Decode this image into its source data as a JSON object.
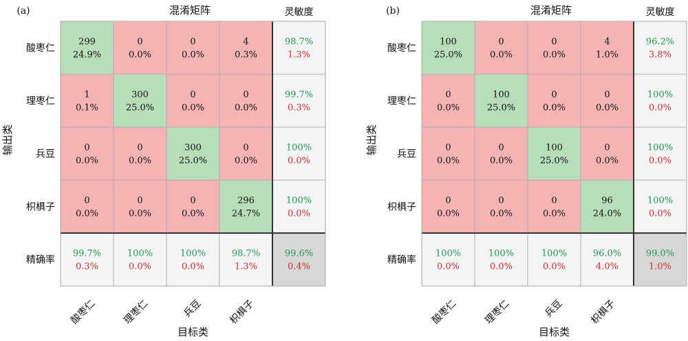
{
  "chart_data": [
    {
      "type": "heatmap",
      "panel": "(a)",
      "title": "混淆矩阵",
      "xlabel": "目标类",
      "ylabel": "输出类",
      "col_header": "灵敏度",
      "row_footer": "精确率",
      "categories": [
        "酸枣仁",
        "理枣仁",
        "兵豆",
        "枳椇子"
      ],
      "counts": [
        [
          299,
          0,
          0,
          4
        ],
        [
          1,
          300,
          0,
          0
        ],
        [
          0,
          0,
          300,
          0
        ],
        [
          0,
          0,
          0,
          296
        ]
      ],
      "percents": [
        [
          "24.9%",
          "0.0%",
          "0.0%",
          "0.3%"
        ],
        [
          "0.1%",
          "25.0%",
          "0.0%",
          "0.0%"
        ],
        [
          "0.0%",
          "0.0%",
          "25.0%",
          "0.0%"
        ],
        [
          "0.0%",
          "0.0%",
          "0.0%",
          "24.7%"
        ]
      ],
      "row_summary": [
        [
          "98.7%",
          "1.3%"
        ],
        [
          "99.7%",
          "0.3%"
        ],
        [
          "100%",
          "0.0%"
        ],
        [
          "100%",
          "0.0%"
        ]
      ],
      "col_summary": [
        [
          "99.7%",
          "0.3%"
        ],
        [
          "100%",
          "0.0%"
        ],
        [
          "100%",
          "0.0%"
        ],
        [
          "98.7%",
          "1.3%"
        ]
      ],
      "overall": [
        "99.6%",
        "0.4%"
      ]
    },
    {
      "type": "heatmap",
      "panel": "(b)",
      "title": "混淆矩阵",
      "xlabel": "目标类",
      "ylabel": "输出类",
      "col_header": "灵敏度",
      "row_footer": "精确率",
      "categories": [
        "酸枣仁",
        "理枣仁",
        "兵豆",
        "枳椇子"
      ],
      "counts": [
        [
          100,
          0,
          0,
          4
        ],
        [
          0,
          100,
          0,
          0
        ],
        [
          0,
          0,
          100,
          0
        ],
        [
          0,
          0,
          0,
          96
        ]
      ],
      "percents": [
        [
          "25.0%",
          "0.0%",
          "0.0%",
          "1.0%"
        ],
        [
          "0.0%",
          "25.0%",
          "0.0%",
          "0.0%"
        ],
        [
          "0.0%",
          "0.0%",
          "25.0%",
          "0.0%"
        ],
        [
          "0.0%",
          "0.0%",
          "0.0%",
          "24.0%"
        ]
      ],
      "row_summary": [
        [
          "96.2%",
          "3.8%"
        ],
        [
          "100%",
          "0.0%"
        ],
        [
          "100%",
          "0.0%"
        ],
        [
          "100%",
          "0.0%"
        ]
      ],
      "col_summary": [
        [
          "100%",
          "0.0%"
        ],
        [
          "100%",
          "0.0%"
        ],
        [
          "100%",
          "0.0%"
        ],
        [
          "96.0%",
          "4.0%"
        ]
      ],
      "overall": [
        "99.0%",
        "1.0%"
      ]
    }
  ],
  "colors": {
    "correct_fill": "#b7deb9",
    "wrong_fill": "#f4b4b4",
    "summary_fill": "#f3f4f5",
    "overall_fill": "#d7d7d7",
    "good_text": "#1f9a4b",
    "bad_text": "#d62a2a",
    "grid_line": "#a9a9a9",
    "dark_line": "#333333"
  }
}
